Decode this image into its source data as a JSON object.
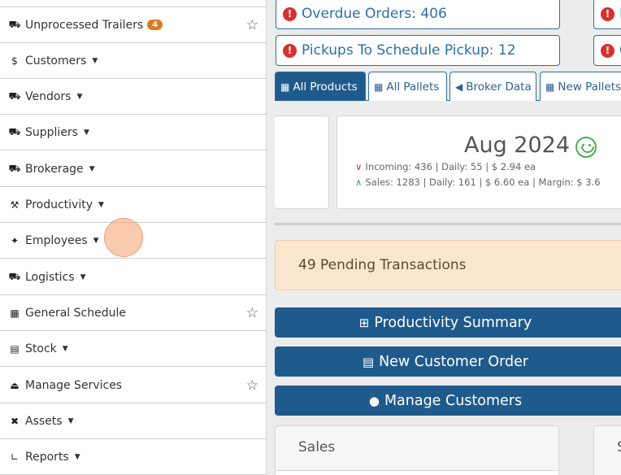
{
  "sidebar": {
    "items": [
      {
        "label": "Unprocessed Trailers",
        "icon": "trailer-icon",
        "badge": "4",
        "starred": true
      },
      {
        "label": "Customers",
        "icon": "dollar-icon"
      },
      {
        "label": "Vendors",
        "icon": "truck-icon"
      },
      {
        "label": "Suppliers",
        "icon": "truck-trailer-icon"
      },
      {
        "label": "Brokerage",
        "icon": "truck-fast-icon"
      },
      {
        "label": "Productivity",
        "icon": "hammer-icon"
      },
      {
        "label": "Employees",
        "icon": "person-icon"
      },
      {
        "label": "Logistics",
        "icon": "truck-icon"
      },
      {
        "label": "General Schedule",
        "icon": "calendar-icon",
        "starred": true
      },
      {
        "label": "Stock",
        "icon": "pallet-icon"
      },
      {
        "label": "Manage Services",
        "icon": "eject-icon",
        "starred": true
      },
      {
        "label": "Assets",
        "icon": "tools-icon"
      },
      {
        "label": "Reports",
        "icon": "chart-line-icon"
      }
    ]
  },
  "alerts": {
    "overdue": "Overdue Orders: 406",
    "pickups": "Pickups To Schedule Pickup: 12",
    "partial_top": "I",
    "partial_bottom": "C"
  },
  "tabs": [
    {
      "label": "All Products",
      "icon": "pallets-icon"
    },
    {
      "label": "All Pallets",
      "icon": "pallets-icon"
    },
    {
      "label": "Broker Data",
      "icon": "share-icon"
    },
    {
      "label": "New Pallets",
      "icon": "pallets-icon"
    }
  ],
  "month_card": {
    "title": "Aug 2024",
    "incoming": "Incoming: 436 | Daily: 55 | $ 2.94 ea",
    "sales": "Sales: 1283 | Daily: 161 | $ 6.60 ea | Margin: $ 3.6"
  },
  "pending": "49 Pending Transactions",
  "buttons": {
    "productivity": "Productivity Summary",
    "new_order": "New Customer Order",
    "manage_customers": "Manage Customers"
  },
  "sales_card": {
    "title": "Sales",
    "partial": "S"
  },
  "colors": {
    "primary": "#1f5a8c",
    "alert_border": "#2c6ea3",
    "alert_icon": "#d9302c",
    "pending_bg": "#fbe7cf",
    "badge": "#e07a1f",
    "success": "#4caf50"
  }
}
